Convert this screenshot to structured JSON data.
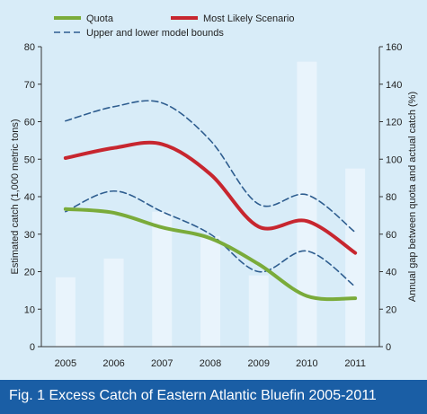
{
  "caption": "Fig. 1  Excess Catch of Eastern Atlantic Bluefin 2005-2011",
  "colors": {
    "background": "#d8ecf8",
    "bars": "#e9f4fc",
    "quota": "#7aab3a",
    "most_likely": "#c7262f",
    "bounds": "#2e5d8f",
    "axis": "#333333",
    "caption_bar": "#1a5ea5"
  },
  "chart_data": {
    "type": "bar+line",
    "categories": [
      "2005",
      "2006",
      "2007",
      "2008",
      "2009",
      "2010",
      "2011"
    ],
    "ylabel": "Estimated catch (1,000 metric tons)",
    "ylabel_right": "Annual gap between quota and actual catch (%)",
    "ylim": [
      0,
      80
    ],
    "ylim_right": [
      0,
      160
    ],
    "yticks": [
      "0",
      "10",
      "20",
      "30",
      "40",
      "50",
      "60",
      "70",
      "80"
    ],
    "yticks_right": [
      "0",
      "20",
      "40",
      "60",
      "80",
      "100",
      "120",
      "140",
      "160"
    ],
    "legend_position": "top",
    "bars": {
      "axis": "right",
      "values": [
        37,
        47,
        72,
        59,
        38,
        152,
        95
      ]
    },
    "series": [
      {
        "name": "Quota",
        "style": "solid-thick",
        "color": "#7aab3a",
        "values": [
          36.7,
          35.7,
          31.8,
          28.9,
          22.0,
          13.5,
          12.9
        ]
      },
      {
        "name": "Most Likely Scenario",
        "style": "solid-thick",
        "color": "#c7262f",
        "values": [
          50.3,
          53.0,
          54.0,
          46.0,
          32.0,
          33.5,
          25.0
        ]
      },
      {
        "name": "Upper and lower model bounds",
        "style": "dashed",
        "color": "#2e5d8f",
        "values": [
          60.2,
          64.0,
          65.0,
          55.0,
          38.0,
          40.5,
          30.5
        ]
      },
      {
        "style": "dashed",
        "color": "#2e5d8f",
        "values": [
          36.0,
          41.5,
          36.0,
          30.0,
          20.0,
          25.5,
          16.0
        ]
      }
    ]
  }
}
